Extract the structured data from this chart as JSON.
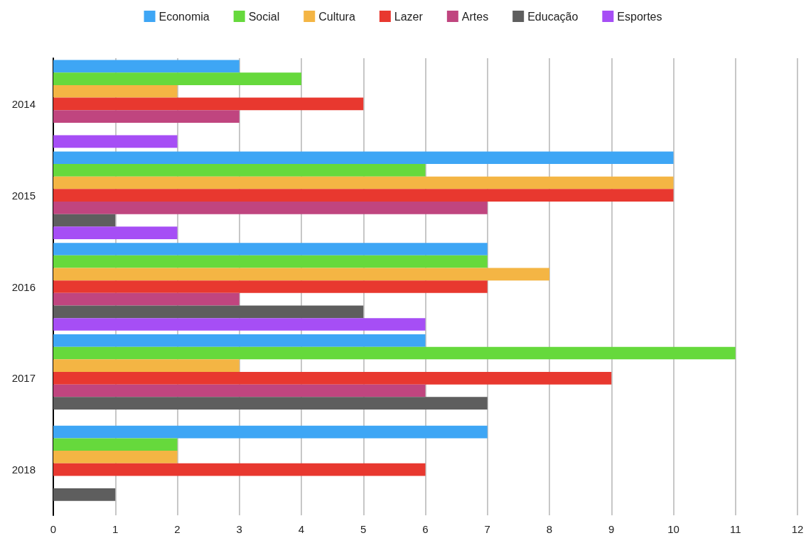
{
  "chart_data": {
    "type": "bar",
    "orientation": "horizontal",
    "categories": [
      "2014",
      "2015",
      "2016",
      "2017",
      "2018"
    ],
    "series": [
      {
        "name": "Economia",
        "color": "#3ea6f5",
        "values": [
          3,
          10,
          7,
          6,
          7
        ]
      },
      {
        "name": "Social",
        "color": "#66d93c",
        "values": [
          4,
          6,
          7,
          11,
          2
        ]
      },
      {
        "name": "Cultura",
        "color": "#f4b544",
        "values": [
          2,
          10,
          8,
          3,
          2
        ]
      },
      {
        "name": "Lazer",
        "color": "#e8382f",
        "values": [
          5,
          10,
          7,
          9,
          6
        ]
      },
      {
        "name": "Artes",
        "color": "#c0457f",
        "values": [
          3,
          7,
          3,
          6,
          null
        ]
      },
      {
        "name": "Educação",
        "color": "#5e5e5e",
        "values": [
          null,
          1,
          5,
          7,
          1
        ]
      },
      {
        "name": "Esportes",
        "color": "#a64ef5",
        "values": [
          2,
          2,
          6,
          null,
          null
        ]
      }
    ],
    "xlim": [
      0,
      12
    ],
    "xticks": [
      0,
      1,
      2,
      3,
      4,
      5,
      6,
      7,
      8,
      9,
      10,
      11,
      12
    ],
    "grid": "x",
    "legend": "top"
  }
}
